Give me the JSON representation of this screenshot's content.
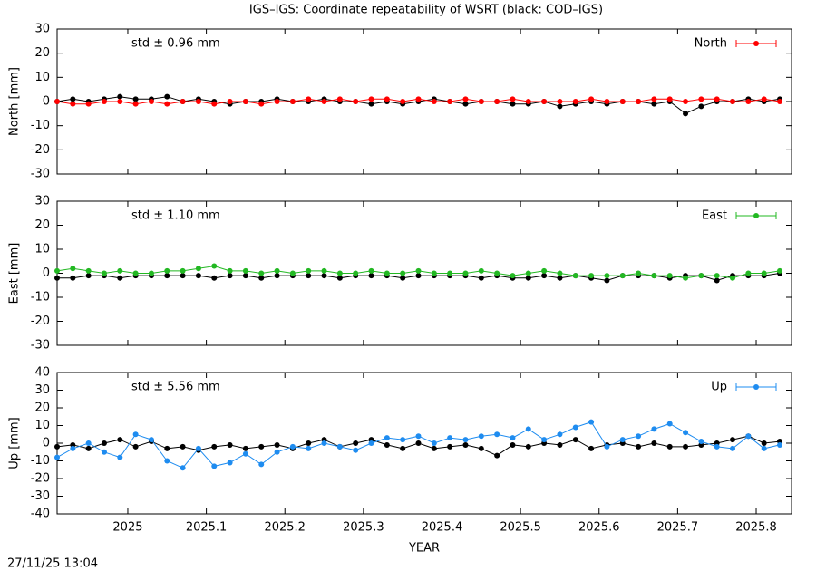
{
  "title": "IGS–IGS: Coordinate repeatability of WSRT (black: COD–IGS)",
  "timestamp": "27/11/25 13:04",
  "chart_data": [
    {
      "type": "line",
      "ylabel": "North [mm]",
      "annotation": "std ± 0.96 mm",
      "xlim": [
        2024.91,
        2025.845
      ],
      "xticks": [
        2025,
        2025.1,
        2025.2,
        2025.3,
        2025.4,
        2025.5,
        2025.6,
        2025.7,
        2025.8
      ],
      "ylim": [
        -30,
        30
      ],
      "yticks": [
        -30,
        -20,
        -10,
        0,
        10,
        20,
        30
      ],
      "legend": "top-right",
      "x": [
        2024.91,
        2024.93,
        2024.95,
        2024.97,
        2024.99,
        2025.01,
        2025.03,
        2025.05,
        2025.07,
        2025.09,
        2025.11,
        2025.13,
        2025.15,
        2025.17,
        2025.19,
        2025.21,
        2025.23,
        2025.25,
        2025.27,
        2025.29,
        2025.31,
        2025.33,
        2025.35,
        2025.37,
        2025.39,
        2025.41,
        2025.43,
        2025.45,
        2025.47,
        2025.49,
        2025.51,
        2025.53,
        2025.55,
        2025.57,
        2025.59,
        2025.61,
        2025.63,
        2025.65,
        2025.67,
        2025.69,
        2025.71,
        2025.73,
        2025.75,
        2025.77,
        2025.79,
        2025.81,
        2025.83
      ],
      "series": [
        {
          "color": "#000000",
          "values": [
            0,
            1,
            0,
            1,
            2,
            1,
            1,
            2,
            0,
            1,
            0,
            -1,
            0,
            0,
            1,
            0,
            0,
            1,
            0,
            0,
            -1,
            0,
            -1,
            0,
            1,
            0,
            -1,
            0,
            0,
            -1,
            -1,
            0,
            -2,
            -1,
            0,
            -1,
            0,
            0,
            -1,
            0,
            -5,
            -2,
            0,
            0,
            1,
            0,
            1
          ]
        },
        {
          "name": "North",
          "color": "#ff0000",
          "values": [
            0,
            -1,
            -1,
            0,
            0,
            -1,
            0,
            -1,
            0,
            0,
            -1,
            0,
            0,
            -1,
            0,
            0,
            1,
            0,
            1,
            0,
            1,
            1,
            0,
            1,
            0,
            0,
            1,
            0,
            0,
            1,
            0,
            0,
            0,
            0,
            1,
            0,
            0,
            0,
            1,
            1,
            0,
            1,
            1,
            0,
            0,
            1,
            0
          ]
        }
      ]
    },
    {
      "type": "line",
      "ylabel": "East [mm]",
      "annotation": "std ± 1.10 mm",
      "xlim": [
        2024.91,
        2025.845
      ],
      "xticks": [
        2025,
        2025.1,
        2025.2,
        2025.3,
        2025.4,
        2025.5,
        2025.6,
        2025.7,
        2025.8
      ],
      "ylim": [
        -30,
        30
      ],
      "yticks": [
        -30,
        -20,
        -10,
        0,
        10,
        20,
        30
      ],
      "legend": "top-right",
      "x": [
        2024.91,
        2024.93,
        2024.95,
        2024.97,
        2024.99,
        2025.01,
        2025.03,
        2025.05,
        2025.07,
        2025.09,
        2025.11,
        2025.13,
        2025.15,
        2025.17,
        2025.19,
        2025.21,
        2025.23,
        2025.25,
        2025.27,
        2025.29,
        2025.31,
        2025.33,
        2025.35,
        2025.37,
        2025.39,
        2025.41,
        2025.43,
        2025.45,
        2025.47,
        2025.49,
        2025.51,
        2025.53,
        2025.55,
        2025.57,
        2025.59,
        2025.61,
        2025.63,
        2025.65,
        2025.67,
        2025.69,
        2025.71,
        2025.73,
        2025.75,
        2025.77,
        2025.79,
        2025.81,
        2025.83
      ],
      "series": [
        {
          "color": "#000000",
          "values": [
            -2,
            -2,
            -1,
            -1,
            -2,
            -1,
            -1,
            -1,
            -1,
            -1,
            -2,
            -1,
            -1,
            -2,
            -1,
            -1,
            -1,
            -1,
            -2,
            -1,
            -1,
            -1,
            -2,
            -1,
            -1,
            -1,
            -1,
            -2,
            -1,
            -2,
            -2,
            -1,
            -2,
            -1,
            -2,
            -3,
            -1,
            -1,
            -1,
            -2,
            -1,
            -1,
            -3,
            -1,
            -1,
            -1,
            0
          ]
        },
        {
          "name": "East",
          "color": "#22b822",
          "values": [
            1,
            2,
            1,
            0,
            1,
            0,
            0,
            1,
            1,
            2,
            3,
            1,
            1,
            0,
            1,
            0,
            1,
            1,
            0,
            0,
            1,
            0,
            0,
            1,
            0,
            0,
            0,
            1,
            0,
            -1,
            0,
            1,
            0,
            -1,
            -1,
            -1,
            -1,
            0,
            -1,
            -1,
            -2,
            -1,
            -1,
            -2,
            0,
            0,
            1
          ]
        }
      ]
    },
    {
      "type": "line",
      "ylabel": "Up [mm]",
      "xlabel": "YEAR",
      "annotation": "std ± 5.56 mm",
      "xlim": [
        2024.91,
        2025.845
      ],
      "xticks": [
        2025,
        2025.1,
        2025.2,
        2025.3,
        2025.4,
        2025.5,
        2025.6,
        2025.7,
        2025.8
      ],
      "ylim": [
        -40,
        40
      ],
      "yticks": [
        -40,
        -30,
        -20,
        -10,
        0,
        10,
        20,
        30,
        40
      ],
      "legend": "top-right",
      "x": [
        2024.91,
        2024.93,
        2024.95,
        2024.97,
        2024.99,
        2025.01,
        2025.03,
        2025.05,
        2025.07,
        2025.09,
        2025.11,
        2025.13,
        2025.15,
        2025.17,
        2025.19,
        2025.21,
        2025.23,
        2025.25,
        2025.27,
        2025.29,
        2025.31,
        2025.33,
        2025.35,
        2025.37,
        2025.39,
        2025.41,
        2025.43,
        2025.45,
        2025.47,
        2025.49,
        2025.51,
        2025.53,
        2025.55,
        2025.57,
        2025.59,
        2025.61,
        2025.63,
        2025.65,
        2025.67,
        2025.69,
        2025.71,
        2025.73,
        2025.75,
        2025.77,
        2025.79,
        2025.81,
        2025.83
      ],
      "series": [
        {
          "color": "#000000",
          "values": [
            -2,
            -1,
            -3,
            0,
            2,
            -2,
            1,
            -3,
            -2,
            -4,
            -2,
            -1,
            -3,
            -2,
            -1,
            -3,
            0,
            2,
            -2,
            0,
            2,
            -1,
            -3,
            0,
            -3,
            -2,
            -1,
            -3,
            -7,
            -1,
            -2,
            0,
            -1,
            2,
            -3,
            -1,
            0,
            -2,
            0,
            -2,
            -2,
            -1,
            0,
            2,
            4,
            0,
            1
          ]
        },
        {
          "name": "Up",
          "color": "#1e8cf0",
          "values": [
            -8,
            -3,
            0,
            -5,
            -8,
            5,
            2,
            -10,
            -14,
            -3,
            -13,
            -11,
            -6,
            -12,
            -5,
            -2,
            -3,
            0,
            -2,
            -4,
            0,
            3,
            2,
            4,
            0,
            3,
            2,
            4,
            5,
            3,
            8,
            2,
            5,
            9,
            12,
            -2,
            2,
            4,
            8,
            11,
            6,
            1,
            -2,
            -3,
            4,
            -3,
            -1
          ]
        }
      ]
    }
  ]
}
